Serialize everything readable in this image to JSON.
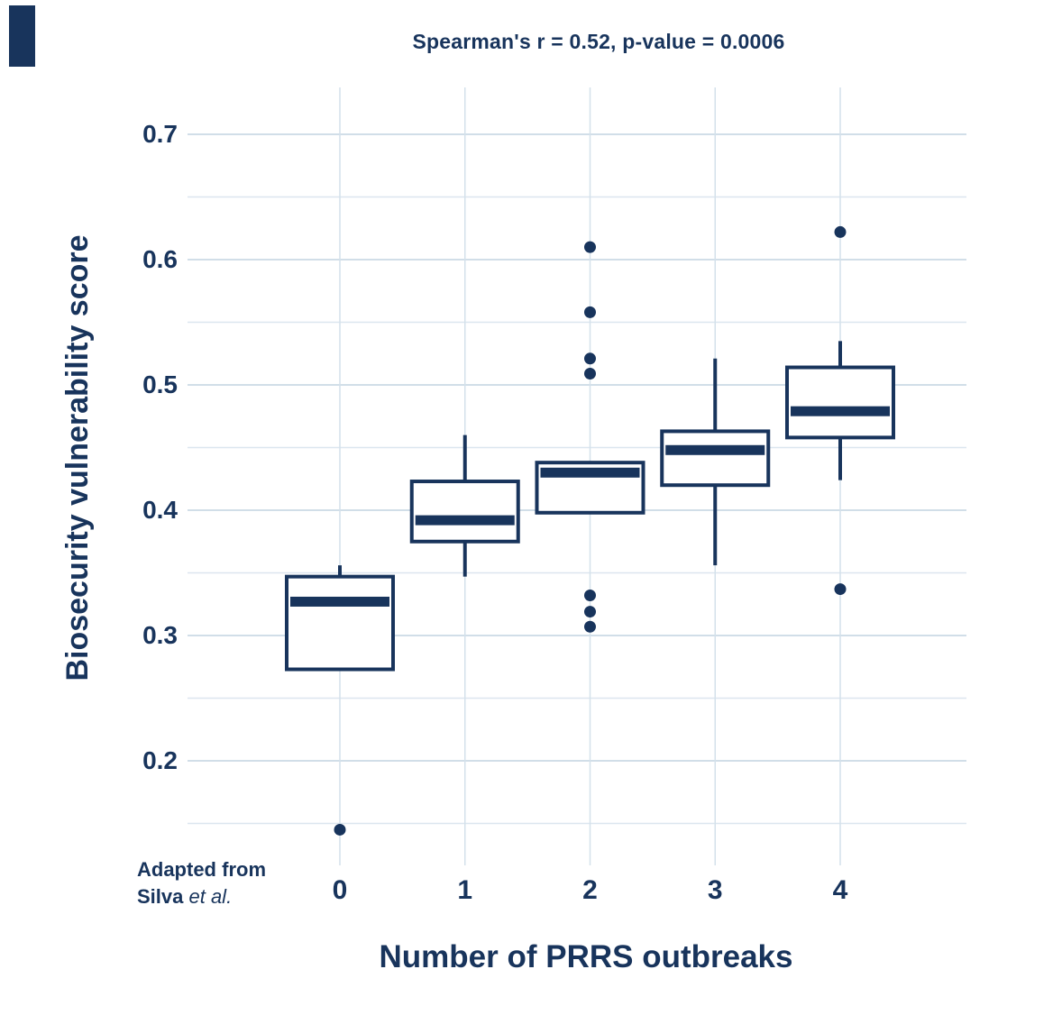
{
  "figure": {
    "note": {
      "line1": "Adapted from",
      "line2_regular": "Silva ",
      "line2_italic": "et al."
    }
  },
  "chart_data": {
    "type": "boxplot",
    "title": "Spearman's r = 0.52, p-value = 0.0006",
    "xlabel": "Number of PRRS outbreaks",
    "ylabel": "Biosecurity vulnerability score",
    "categories": [
      "0",
      "1",
      "2",
      "3",
      "4"
    ],
    "axes": {
      "y_tick_labels": [
        {
          "value": 0.2,
          "label": "0.2"
        },
        {
          "value": 0.3,
          "label": "0.3"
        },
        {
          "value": 0.4,
          "label": "0.4"
        },
        {
          "value": 0.5,
          "label": "0.5"
        },
        {
          "value": 0.6,
          "label": "0.6"
        },
        {
          "value": 0.7,
          "label": "0.7"
        }
      ],
      "y_grid_min": 0.15,
      "y_grid_max": 0.7,
      "y_grid_step": 0.05,
      "ylim": [
        0.12,
        0.74
      ],
      "grid": true,
      "legend": "none"
    },
    "groups": [
      {
        "category": "0",
        "whisker_low": 0.273,
        "q1": 0.273,
        "median": 0.327,
        "q3": 0.347,
        "whisker_high": 0.356,
        "outliers": [
          0.145
        ]
      },
      {
        "category": "1",
        "whisker_low": 0.347,
        "q1": 0.375,
        "median": 0.392,
        "q3": 0.423,
        "whisker_high": 0.46,
        "outliers": []
      },
      {
        "category": "2",
        "whisker_low": 0.398,
        "q1": 0.398,
        "median": 0.43,
        "q3": 0.438,
        "whisker_high": 0.438,
        "outliers": [
          0.61,
          0.558,
          0.521,
          0.509,
          0.332,
          0.319,
          0.307
        ]
      },
      {
        "category": "3",
        "whisker_low": 0.356,
        "q1": 0.42,
        "median": 0.448,
        "q3": 0.463,
        "whisker_high": 0.521,
        "outliers": []
      },
      {
        "category": "4",
        "whisker_low": 0.424,
        "q1": 0.458,
        "median": 0.479,
        "q3": 0.514,
        "whisker_high": 0.535,
        "outliers": [
          0.622,
          0.337
        ]
      }
    ],
    "colors": {
      "ink": "#18345c",
      "box_fill": "#ffffff",
      "grid_major": "#c2d3e1",
      "grid_minor": "#dce6ef",
      "grid_vertical": "#d4e1eb"
    }
  }
}
